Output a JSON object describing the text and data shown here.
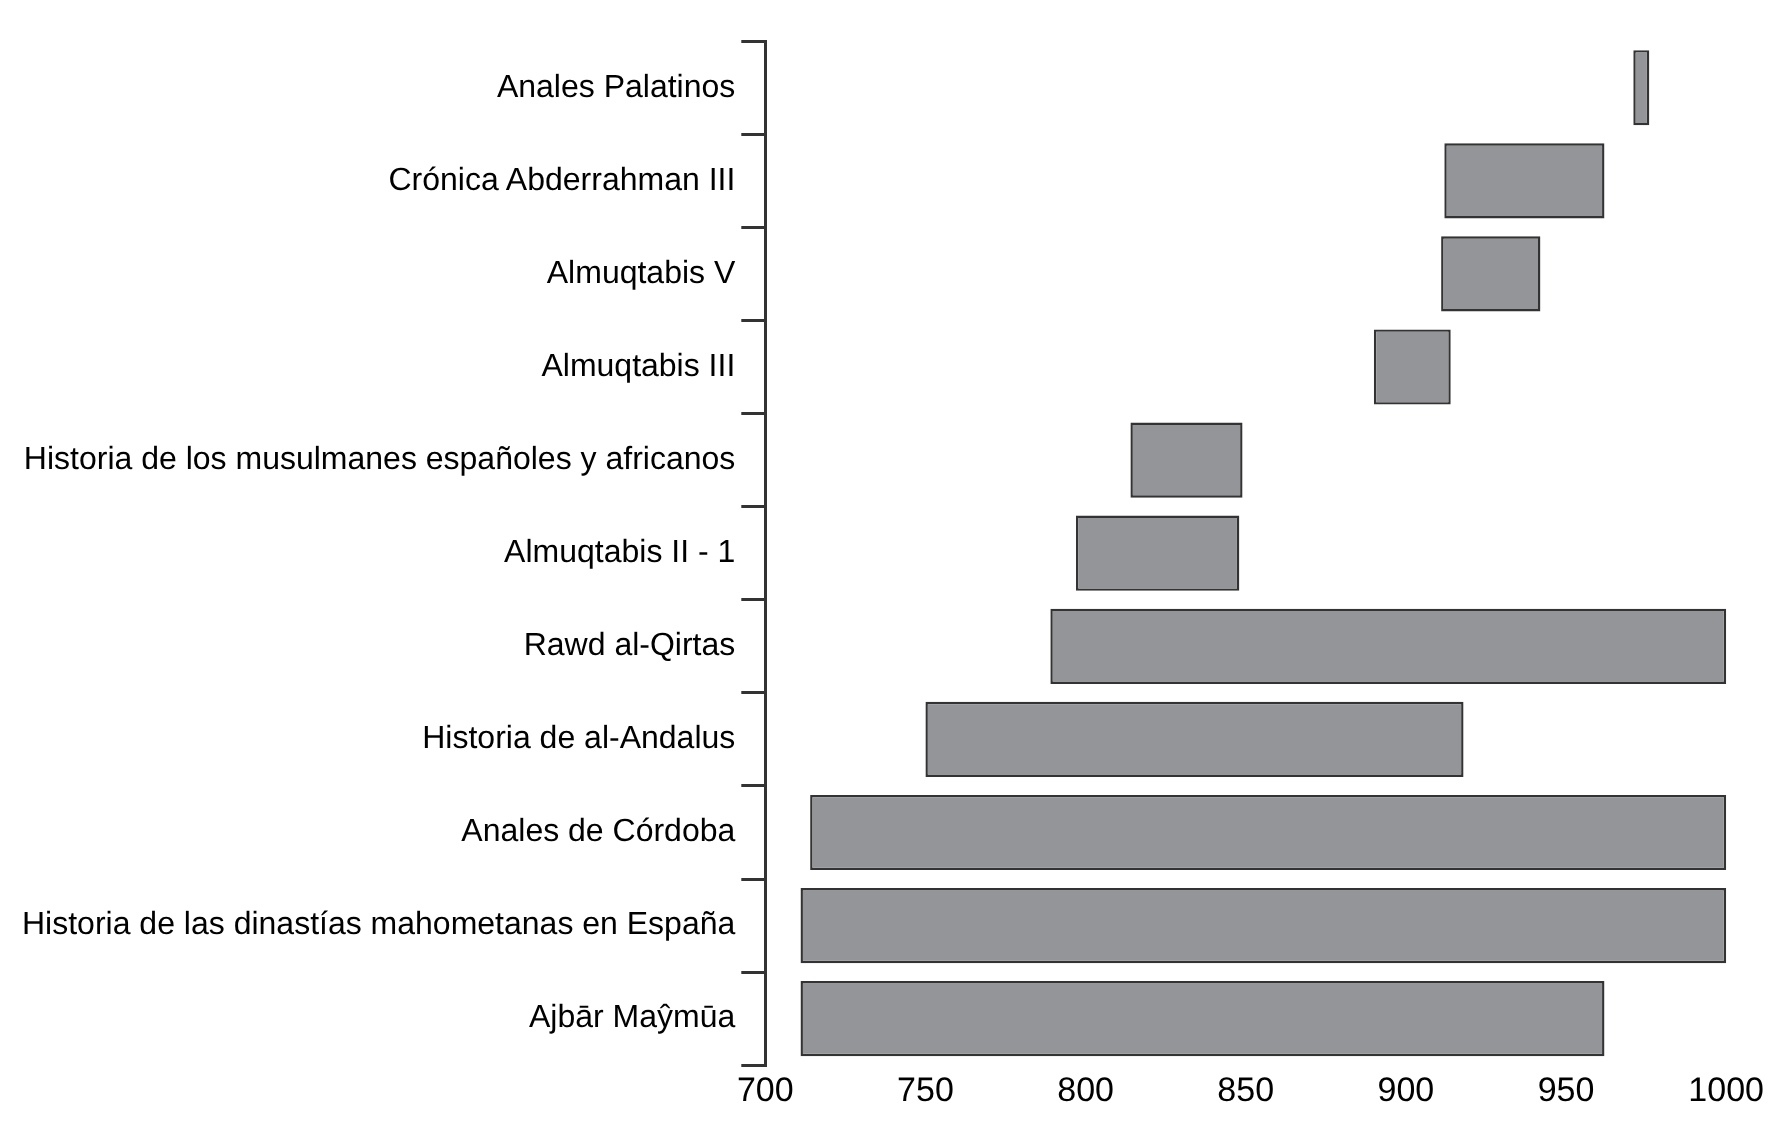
{
  "chart_data": {
    "type": "bar",
    "orientation": "horizontal",
    "categories": [
      "Anales Palatinos",
      "Crónica Abderrahman III",
      "Almuqtabis V",
      "Almuqtabis III",
      "Historia de los musulmanes españoles y africanos",
      "Almuqtabis II - 1",
      "Rawd al-Qirtas",
      "Historia de al-Andalus",
      "Anales de Córdoba",
      "Historia de las dinastías mahometanas en España",
      "Ajbār Maŷmūa"
    ],
    "base": [
      971,
      912,
      911,
      890,
      814,
      797,
      789,
      750,
      714,
      711,
      711
    ],
    "values": [
      5,
      50,
      31,
      24,
      35,
      51,
      211,
      168,
      286,
      289,
      251
    ],
    "color": "#939598",
    "xlim": [
      700,
      1000
    ],
    "xticks": [
      700,
      750,
      800,
      850,
      900,
      950,
      1000
    ],
    "grid": false,
    "legend": false
  }
}
